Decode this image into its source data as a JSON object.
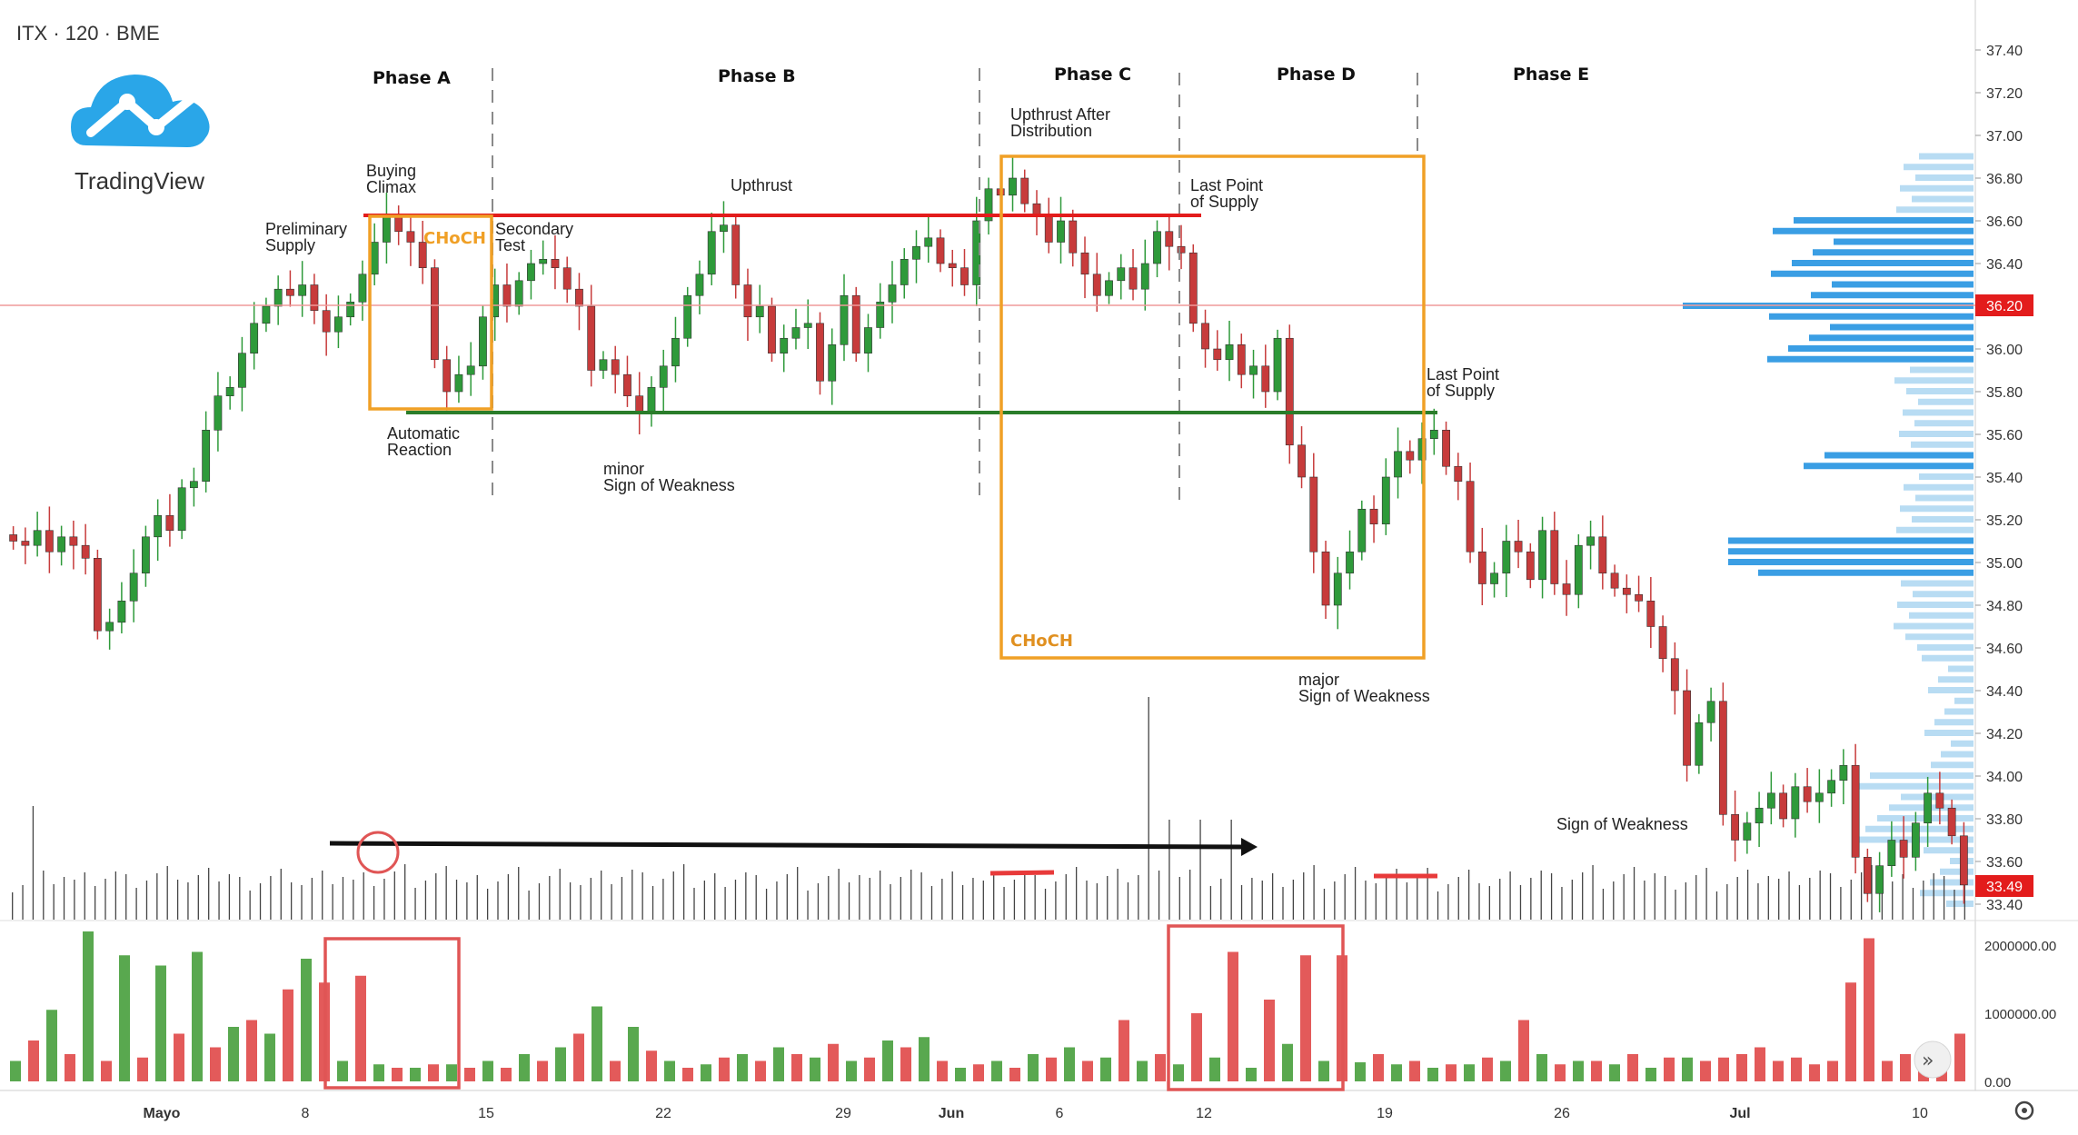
{
  "header": {
    "symbol_line": "ITX · 120 · BME"
  },
  "logo": {
    "text": "TradingView"
  },
  "colors": {
    "up": "#2e9a3a",
    "down": "#c73b3b",
    "vol_up": "#59a84f",
    "vol_down": "#e35a5a",
    "resistance": "#e31c1c",
    "support": "#2a7d2a",
    "box": "#f0a026",
    "profile": "#3a9ee4",
    "profile_light": "#b8dcf3"
  },
  "phases": [
    "Phase A",
    "Phase B",
    "Phase C",
    "Phase D",
    "Phase E"
  ],
  "annotations": {
    "preliminary_supply": [
      "Preliminary",
      "Supply"
    ],
    "buying_climax": [
      "Buying",
      "Climax"
    ],
    "secondary_test": [
      "Secondary",
      "Test"
    ],
    "automatic_reaction": [
      "Automatic",
      "Reaction"
    ],
    "minor_sow": [
      "minor",
      "Sign of Weakness"
    ],
    "upthrust": "Upthrust",
    "utad": [
      "Upthrust After",
      "Distribution"
    ],
    "lps_1": [
      "Last Point",
      "of Supply"
    ],
    "lps_2": [
      "Last Point",
      "of Supply"
    ],
    "major_sow": [
      "major",
      "Sign of Weakness"
    ],
    "sow": "Sign of Weakness",
    "choch_1": "CHoCH",
    "choch_2": "CHoCH"
  },
  "price_axis": {
    "ticks": [
      "37.40",
      "37.20",
      "37.00",
      "36.80",
      "36.60",
      "36.40",
      "36.20",
      "36.00",
      "35.80",
      "35.60",
      "35.40",
      "35.20",
      "35.00",
      "34.80",
      "34.60",
      "34.40",
      "34.20",
      "34.00",
      "33.80",
      "33.60",
      "33.40"
    ],
    "marker_horizontal": "36.20",
    "marker_last": "33.49"
  },
  "volume_axis": {
    "ticks": [
      "2000000.00",
      "1000000.00",
      "0.00"
    ]
  },
  "time_axis": {
    "ticks": [
      "Mayo",
      "8",
      "15",
      "22",
      "29",
      "Jun",
      "6",
      "12",
      "19",
      "26",
      "Jul",
      "10"
    ]
  },
  "chart_data": {
    "type": "candlestick",
    "title": "ITX · 120 · BME",
    "levels": {
      "resistance": 36.62,
      "support": 35.7,
      "horizontal_line": 36.2,
      "last_price": 33.49
    },
    "ylim": [
      33.35,
      37.5
    ],
    "closes": [
      35.1,
      35.08,
      35.15,
      35.05,
      35.12,
      35.08,
      35.02,
      34.68,
      34.72,
      34.82,
      34.95,
      35.12,
      35.22,
      35.15,
      35.35,
      35.38,
      35.62,
      35.78,
      35.82,
      35.98,
      36.12,
      36.2,
      36.28,
      36.25,
      36.3,
      36.18,
      36.08,
      36.15,
      36.22,
      36.35,
      36.5,
      36.62,
      36.55,
      36.5,
      36.38,
      35.95,
      35.8,
      35.88,
      35.92,
      36.15,
      36.3,
      36.2,
      36.32,
      36.4,
      36.42,
      36.38,
      36.28,
      36.2,
      35.9,
      35.95,
      35.88,
      35.78,
      35.7,
      35.82,
      35.92,
      36.05,
      36.25,
      36.35,
      36.55,
      36.58,
      36.3,
      36.15,
      36.2,
      35.98,
      36.05,
      36.1,
      36.12,
      35.85,
      36.02,
      36.25,
      35.98,
      36.1,
      36.22,
      36.3,
      36.42,
      36.48,
      36.52,
      36.4,
      36.38,
      36.3,
      36.6,
      36.75,
      36.72,
      36.8,
      36.68,
      36.62,
      36.5,
      36.6,
      36.45,
      36.35,
      36.25,
      36.32,
      36.38,
      36.28,
      36.4,
      36.55,
      36.48,
      36.45,
      36.12,
      36.0,
      35.95,
      36.02,
      35.88,
      35.92,
      35.8,
      36.05,
      35.55,
      35.4,
      35.05,
      34.8,
      34.95,
      35.05,
      35.25,
      35.18,
      35.4,
      35.52,
      35.48,
      35.58,
      35.62,
      35.45,
      35.38,
      35.05,
      34.9,
      34.95,
      35.1,
      35.05,
      34.92,
      35.15,
      34.9,
      34.85,
      35.08,
      35.12,
      34.95,
      34.88,
      34.85,
      34.82,
      34.7,
      34.55,
      34.4,
      34.05,
      34.25,
      34.35,
      33.82,
      33.7,
      33.78,
      33.85,
      33.92,
      33.8,
      33.95,
      33.88,
      33.92,
      33.98,
      34.05,
      33.62,
      33.45,
      33.58,
      33.7,
      33.62,
      33.78,
      33.92,
      33.85,
      33.72,
      33.49
    ],
    "volume_up": [
      300000,
      1050000,
      2200000,
      1850000,
      1700000,
      1900000,
      800000,
      700000,
      1800000,
      300000,
      250000,
      200000,
      250000,
      300000,
      400000,
      500000,
      1100000,
      800000,
      300000,
      250000,
      400000,
      500000,
      350000,
      300000,
      600000,
      650000,
      200000,
      300000,
      400000,
      500000,
      350000,
      300000,
      250000,
      350000,
      200000,
      550000,
      300000,
      280000,
      250000,
      200000,
      250000,
      300000,
      400000,
      300000,
      250000,
      200000,
      350000
    ],
    "volume_down": [
      600000,
      400000,
      300000,
      350000,
      700000,
      500000,
      900000,
      1350000,
      1450000,
      1550000,
      200000,
      250000,
      200000,
      200000,
      300000,
      700000,
      300000,
      450000,
      200000,
      350000,
      300000,
      400000,
      550000,
      350000,
      500000,
      300000,
      250000,
      200000,
      350000,
      300000,
      900000,
      400000,
      1000000,
      1900000,
      1200000,
      1850000,
      1850000,
      400000,
      300000,
      250000,
      350000,
      900000,
      250000,
      300000,
      400000,
      350000,
      300000,
      350000,
      400000,
      500000,
      300000,
      350000,
      250000,
      300000,
      1450000,
      2100000,
      300000,
      400000,
      350000,
      450000,
      700000
    ],
    "volume_profile": "horizontal histogram at right edge (approximate)"
  }
}
